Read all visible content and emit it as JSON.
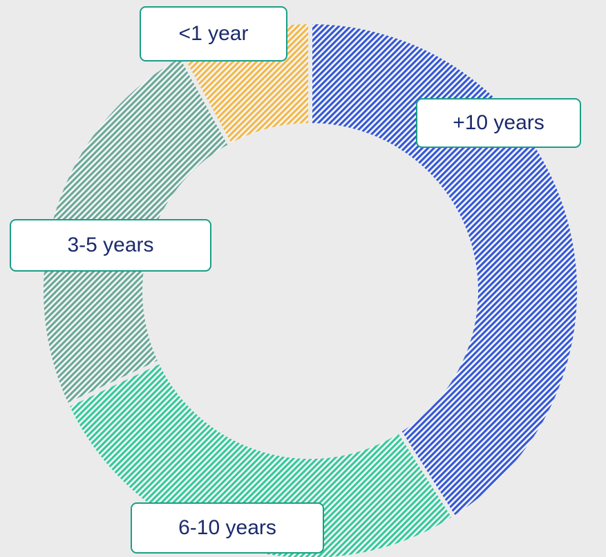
{
  "chart_data": {
    "type": "donut",
    "categories": [
      "+10 years",
      "6-10 years",
      "3-5 years",
      "<1 year"
    ],
    "values": [
      41,
      27,
      24,
      8
    ],
    "colors": [
      "#3558d8",
      "#35c99c",
      "#6aa898",
      "#f3b84a"
    ]
  }
}
